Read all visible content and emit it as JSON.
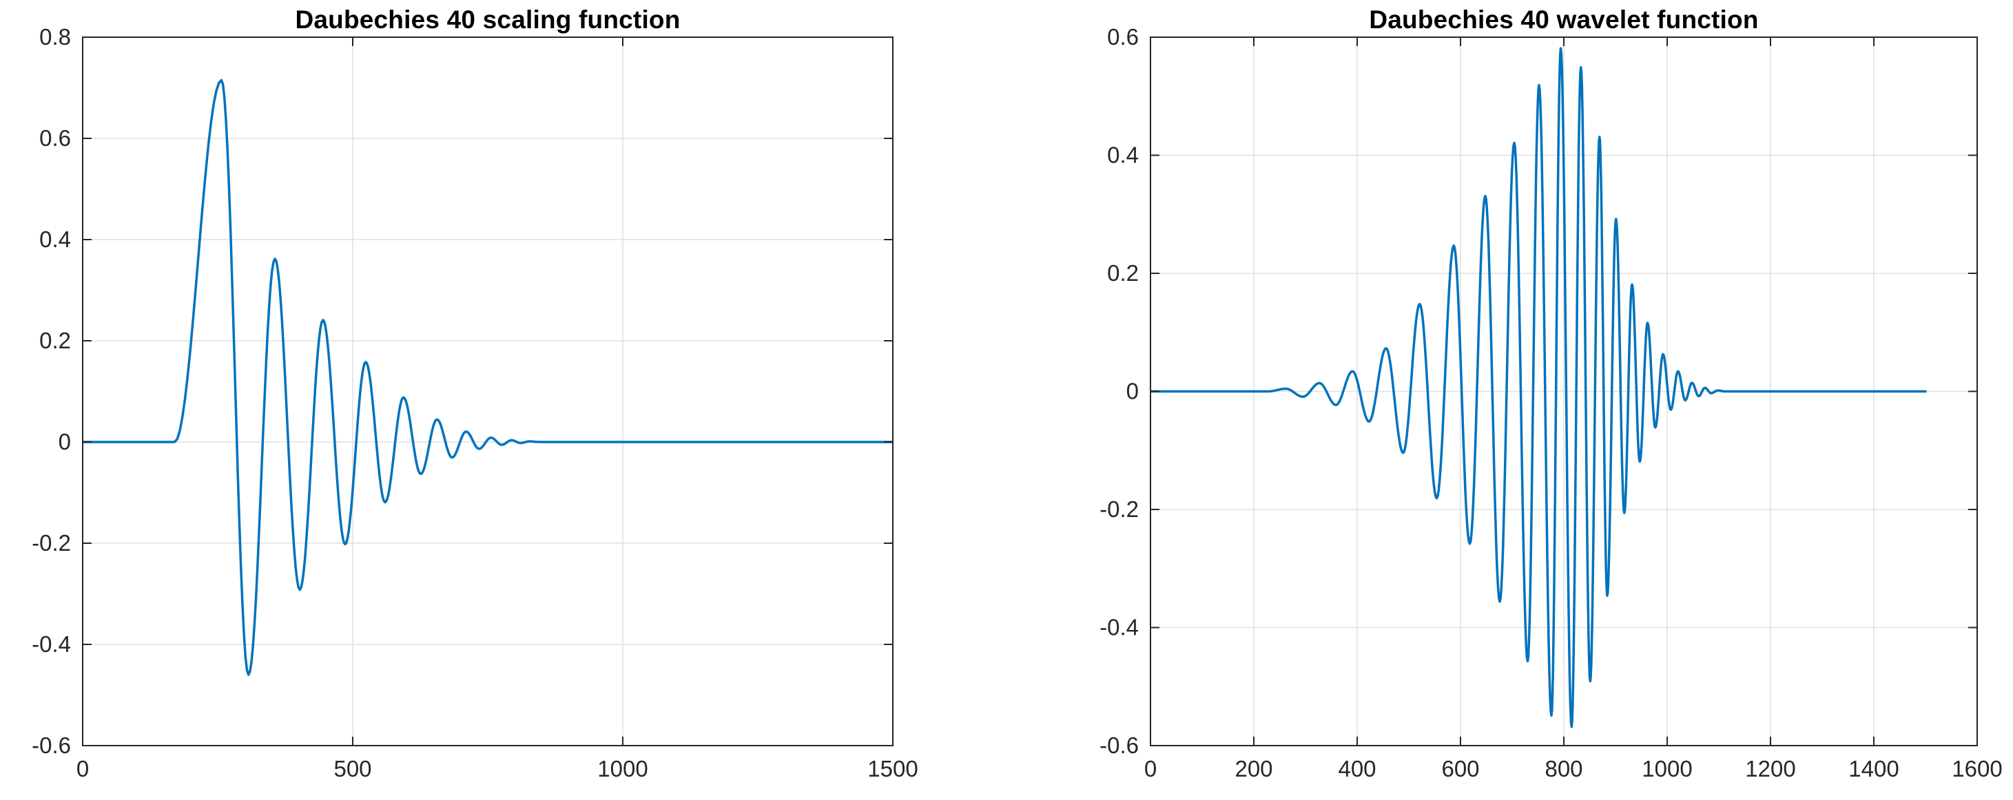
{
  "figure": {
    "background": "#ffffff",
    "frame_color": "#262626",
    "grid_color": "#e1e1e1",
    "tick_label_color": "#262626",
    "title_color": "#000000"
  },
  "chart_data": [
    {
      "type": "line",
      "title": "Daubechies 40 scaling function",
      "xlabel": "",
      "ylabel": "",
      "xlim": [
        0,
        1500
      ],
      "ylim": [
        -0.6,
        0.8
      ],
      "xticks": [
        0,
        500,
        1000,
        1500
      ],
      "xtick_labels": [
        "0",
        "500",
        "1000",
        "1500"
      ],
      "yticks": [
        0.8,
        0.6,
        0.4,
        0.2,
        0,
        -0.2,
        -0.4,
        -0.6
      ],
      "ytick_labels": [
        "0.8",
        "0.6",
        "0.4",
        "0.2",
        "0",
        "-0.2",
        "-0.4",
        "-0.6"
      ],
      "grid": true,
      "legend": null,
      "line_color": "#0072BD",
      "line_width": 3.5,
      "series": [
        {
          "name": "db40-scaling-function",
          "interpolation": "half-cosine-through-extrema",
          "points": [
            [
              0,
              0
            ],
            [
              170,
              0
            ],
            [
              257,
              0.715
            ],
            [
              307,
              -0.46
            ],
            [
              356,
              0.362
            ],
            [
              402,
              -0.292
            ],
            [
              445,
              0.241
            ],
            [
              486,
              -0.202
            ],
            [
              524,
              0.158
            ],
            [
              560,
              -0.119
            ],
            [
              594,
              0.088
            ],
            [
              626,
              -0.063
            ],
            [
              656,
              0.0445
            ],
            [
              684,
              -0.0305
            ],
            [
              710,
              0.0205
            ],
            [
              734,
              -0.0135
            ],
            [
              756,
              0.0085
            ],
            [
              776,
              -0.0055
            ],
            [
              794,
              0.0035
            ],
            [
              811,
              -0.002
            ],
            [
              827,
              0.0012
            ],
            [
              845,
              0
            ],
            [
              1500,
              0
            ]
          ]
        }
      ]
    },
    {
      "type": "line",
      "title": "Daubechies 40 wavelet function",
      "xlabel": "",
      "ylabel": "",
      "xlim": [
        0,
        1600
      ],
      "ylim": [
        -0.6,
        0.6
      ],
      "xticks": [
        0,
        200,
        400,
        600,
        800,
        1000,
        1200,
        1400,
        1600
      ],
      "xtick_labels": [
        "0",
        "200",
        "400",
        "600",
        "800",
        "1000",
        "1200",
        "1400",
        "1600"
      ],
      "yticks": [
        0.6,
        0.4,
        0.2,
        0,
        -0.2,
        -0.4,
        -0.6
      ],
      "ytick_labels": [
        "0.6",
        "0.4",
        "0.2",
        "0",
        "-0.2",
        "-0.4",
        "-0.6"
      ],
      "grid": true,
      "legend": null,
      "line_color": "#0072BD",
      "line_width": 3.5,
      "series": [
        {
          "name": "db40-wavelet-function",
          "interpolation": "half-cosine-through-extrema",
          "points": [
            [
              0,
              0
            ],
            [
              228,
              0
            ],
            [
              262,
              0.0045
            ],
            [
              295,
              -0.009
            ],
            [
              327,
              0.014
            ],
            [
              359,
              -0.023
            ],
            [
              391,
              0.034
            ],
            [
              423,
              -0.051
            ],
            [
              456,
              0.073
            ],
            [
              489,
              -0.104
            ],
            [
              521,
              0.148
            ],
            [
              554,
              -0.181
            ],
            [
              587,
              0.247
            ],
            [
              618,
              -0.258
            ],
            [
              648,
              0.331
            ],
            [
              676,
              -0.356
            ],
            [
              704,
              0.421
            ],
            [
              730,
              -0.457
            ],
            [
              752,
              0.519
            ],
            [
              776,
              -0.549
            ],
            [
              794,
              0.581
            ],
            [
              815,
              -0.568
            ],
            [
              833,
              0.549
            ],
            [
              851,
              -0.491
            ],
            [
              869,
              0.431
            ],
            [
              884,
              -0.346
            ],
            [
              901,
              0.292
            ],
            [
              917,
              -0.206
            ],
            [
              932,
              0.181
            ],
            [
              947,
              -0.119
            ],
            [
              962,
              0.116
            ],
            [
              977,
              -0.061
            ],
            [
              992,
              0.063
            ],
            [
              1007,
              -0.031
            ],
            [
              1021,
              0.034
            ],
            [
              1035,
              -0.015
            ],
            [
              1048,
              0.0145
            ],
            [
              1061,
              -0.008
            ],
            [
              1073,
              0.006
            ],
            [
              1085,
              -0.003
            ],
            [
              1098,
              0.0015
            ],
            [
              1112,
              0
            ],
            [
              1500,
              0
            ]
          ]
        }
      ]
    }
  ]
}
